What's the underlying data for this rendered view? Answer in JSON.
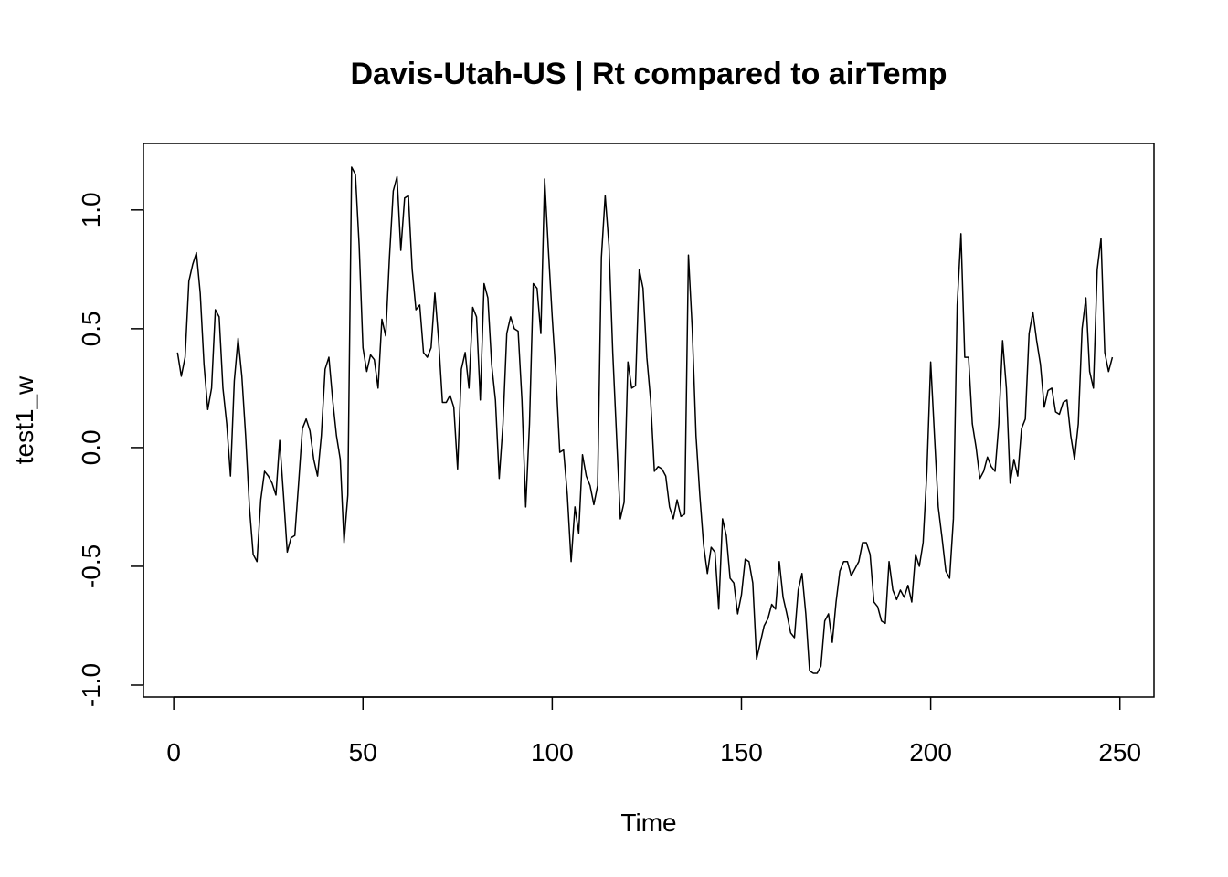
{
  "chart_data": {
    "type": "line",
    "title": "Davis-Utah-US | Rt compared to airTemp",
    "xlabel": "Time",
    "ylabel": "test1_w",
    "xlim": [
      -8,
      259
    ],
    "ylim": [
      -1.05,
      1.28
    ],
    "xticks": [
      0,
      50,
      100,
      150,
      200,
      250
    ],
    "yticks": [
      -1.0,
      -0.5,
      0.0,
      0.5,
      1.0
    ],
    "xtick_labels": [
      "0",
      "50",
      "100",
      "150",
      "200",
      "250"
    ],
    "ytick_labels": [
      "-1.0",
      "-0.5",
      "0.0",
      "0.5",
      "1.0"
    ],
    "grid": false,
    "legend": "none",
    "line_color": "#000000",
    "series": [
      {
        "x_start": 1,
        "values": [
          0.4,
          0.3,
          0.38,
          0.7,
          0.77,
          0.82,
          0.65,
          0.35,
          0.16,
          0.25,
          0.58,
          0.55,
          0.25,
          0.1,
          -0.12,
          0.28,
          0.46,
          0.3,
          0.05,
          -0.25,
          -0.45,
          -0.48,
          -0.22,
          -0.1,
          -0.12,
          -0.15,
          -0.2,
          0.03,
          -0.2,
          -0.44,
          -0.38,
          -0.37,
          -0.15,
          0.08,
          0.12,
          0.07,
          -0.05,
          -0.12,
          0.05,
          0.33,
          0.38,
          0.2,
          0.05,
          -0.05,
          -0.4,
          -0.2,
          1.18,
          1.15,
          0.85,
          0.42,
          0.32,
          0.39,
          0.37,
          0.25,
          0.54,
          0.47,
          0.8,
          1.08,
          1.14,
          0.83,
          1.05,
          1.06,
          0.75,
          0.58,
          0.6,
          0.4,
          0.38,
          0.42,
          0.65,
          0.45,
          0.19,
          0.19,
          0.22,
          0.17,
          -0.09,
          0.33,
          0.4,
          0.25,
          0.59,
          0.55,
          0.2,
          0.69,
          0.63,
          0.35,
          0.2,
          -0.13,
          0.1,
          0.48,
          0.55,
          0.5,
          0.49,
          0.2,
          -0.25,
          0.1,
          0.69,
          0.67,
          0.48,
          1.13,
          0.83,
          0.55,
          0.3,
          -0.02,
          -0.01,
          -0.2,
          -0.48,
          -0.25,
          -0.36,
          -0.03,
          -0.12,
          -0.16,
          -0.24,
          -0.16,
          0.8,
          1.06,
          0.85,
          0.4,
          0.05,
          -0.3,
          -0.23,
          0.36,
          0.25,
          0.26,
          0.75,
          0.67,
          0.38,
          0.2,
          -0.1,
          -0.08,
          -0.09,
          -0.12,
          -0.25,
          -0.3,
          -0.22,
          -0.29,
          -0.28,
          0.81,
          0.5,
          0.05,
          -0.2,
          -0.41,
          -0.53,
          -0.42,
          -0.44,
          -0.68,
          -0.3,
          -0.37,
          -0.55,
          -0.57,
          -0.7,
          -0.62,
          -0.47,
          -0.48,
          -0.57,
          -0.89,
          -0.82,
          -0.75,
          -0.72,
          -0.66,
          -0.68,
          -0.48,
          -0.63,
          -0.7,
          -0.78,
          -0.8,
          -0.6,
          -0.53,
          -0.7,
          -0.94,
          -0.95,
          -0.95,
          -0.92,
          -0.73,
          -0.7,
          -0.82,
          -0.65,
          -0.52,
          -0.48,
          -0.48,
          -0.54,
          -0.51,
          -0.48,
          -0.4,
          -0.4,
          -0.45,
          -0.65,
          -0.67,
          -0.73,
          -0.74,
          -0.48,
          -0.6,
          -0.64,
          -0.6,
          -0.63,
          -0.58,
          -0.65,
          -0.45,
          -0.5,
          -0.4,
          -0.1,
          0.36,
          0.05,
          -0.25,
          -0.38,
          -0.52,
          -0.55,
          -0.3,
          0.6,
          0.9,
          0.38,
          0.38,
          0.1,
          0.0,
          -0.13,
          -0.1,
          -0.04,
          -0.08,
          -0.1,
          0.1,
          0.45,
          0.25,
          -0.15,
          -0.05,
          -0.12,
          0.08,
          0.12,
          0.48,
          0.57,
          0.45,
          0.35,
          0.17,
          0.24,
          0.25,
          0.15,
          0.14,
          0.19,
          0.2,
          0.05,
          -0.05,
          0.1,
          0.5,
          0.63,
          0.32,
          0.25,
          0.75,
          0.88,
          0.4,
          0.32,
          0.38
        ]
      }
    ]
  }
}
